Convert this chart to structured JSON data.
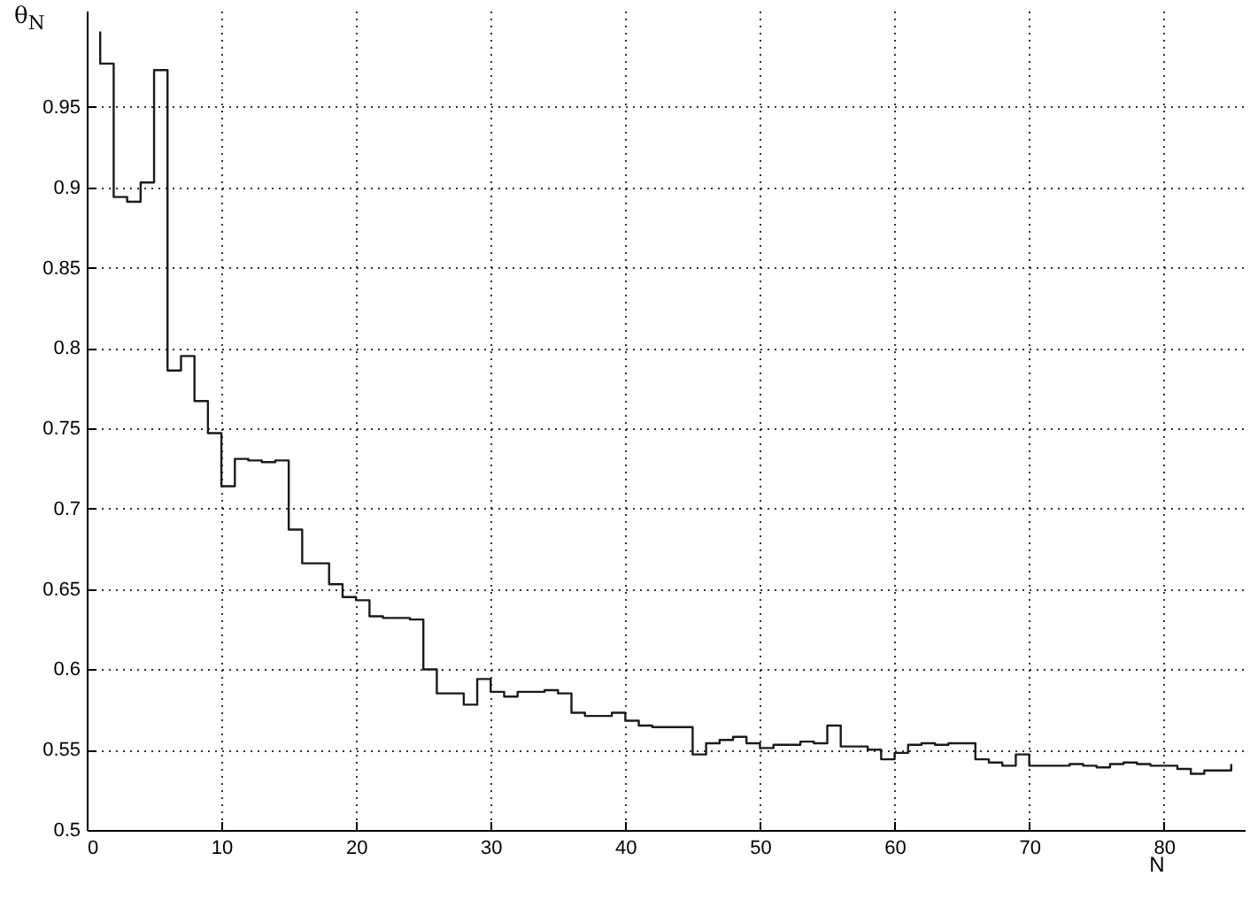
{
  "chart_data": {
    "type": "step",
    "xlabel": "N",
    "ylabel": "θ$_{N}$",
    "x": [
      1,
      1,
      2,
      3,
      4,
      5,
      6,
      7,
      8,
      9,
      10,
      11,
      12,
      13,
      14,
      15,
      16,
      17,
      18,
      19,
      20,
      21,
      22,
      23,
      24,
      25,
      26,
      27,
      28,
      29,
      30,
      31,
      32,
      33,
      34,
      35,
      36,
      37,
      38,
      39,
      40,
      41,
      42,
      43,
      44,
      45,
      46,
      47,
      48,
      49,
      50,
      51,
      52,
      53,
      54,
      55,
      56,
      57,
      58,
      59,
      60,
      61,
      62,
      63,
      64,
      65,
      66,
      67,
      68,
      69,
      70,
      71,
      72,
      73,
      74,
      75,
      76,
      77,
      78,
      79,
      80,
      81,
      82,
      83,
      84,
      85
    ],
    "series": [
      {
        "color": "#1a1a1a",
        "values": [
          0.997,
          0.977,
          0.894,
          0.891,
          0.903,
          0.973,
          0.786,
          0.795,
          0.767,
          0.747,
          0.714,
          0.731,
          0.73,
          0.729,
          0.73,
          0.687,
          0.666,
          0.666,
          0.653,
          0.645,
          0.643,
          0.633,
          0.632,
          0.632,
          0.631,
          0.6,
          0.585,
          0.585,
          0.578,
          0.594,
          0.586,
          0.583,
          0.586,
          0.586,
          0.587,
          0.585,
          0.573,
          0.571,
          0.571,
          0.573,
          0.568,
          0.565,
          0.564,
          0.564,
          0.564,
          0.547,
          0.554,
          0.556,
          0.558,
          0.554,
          0.551,
          0.553,
          0.553,
          0.555,
          0.554,
          0.565,
          0.552,
          0.552,
          0.55,
          0.544,
          0.548,
          0.553,
          0.554,
          0.553,
          0.554,
          0.554,
          0.544,
          0.542,
          0.54,
          0.547,
          0.54,
          0.54,
          0.54,
          0.541,
          0.54,
          0.539,
          0.541,
          0.542,
          0.541,
          0.54,
          0.54,
          0.538,
          0.535,
          0.537,
          0.537,
          0.541
        ]
      }
    ],
    "xlim": [
      0,
      86
    ],
    "ylim": [
      0.5,
      1.01
    ],
    "xticks": [
      0,
      10,
      20,
      30,
      40,
      50,
      60,
      70,
      80
    ],
    "yticks": [
      0.5,
      0.55,
      0.6,
      0.65,
      0.7,
      0.75,
      0.8,
      0.85,
      0.9,
      0.95
    ],
    "grid": true,
    "line_style": "solid"
  }
}
